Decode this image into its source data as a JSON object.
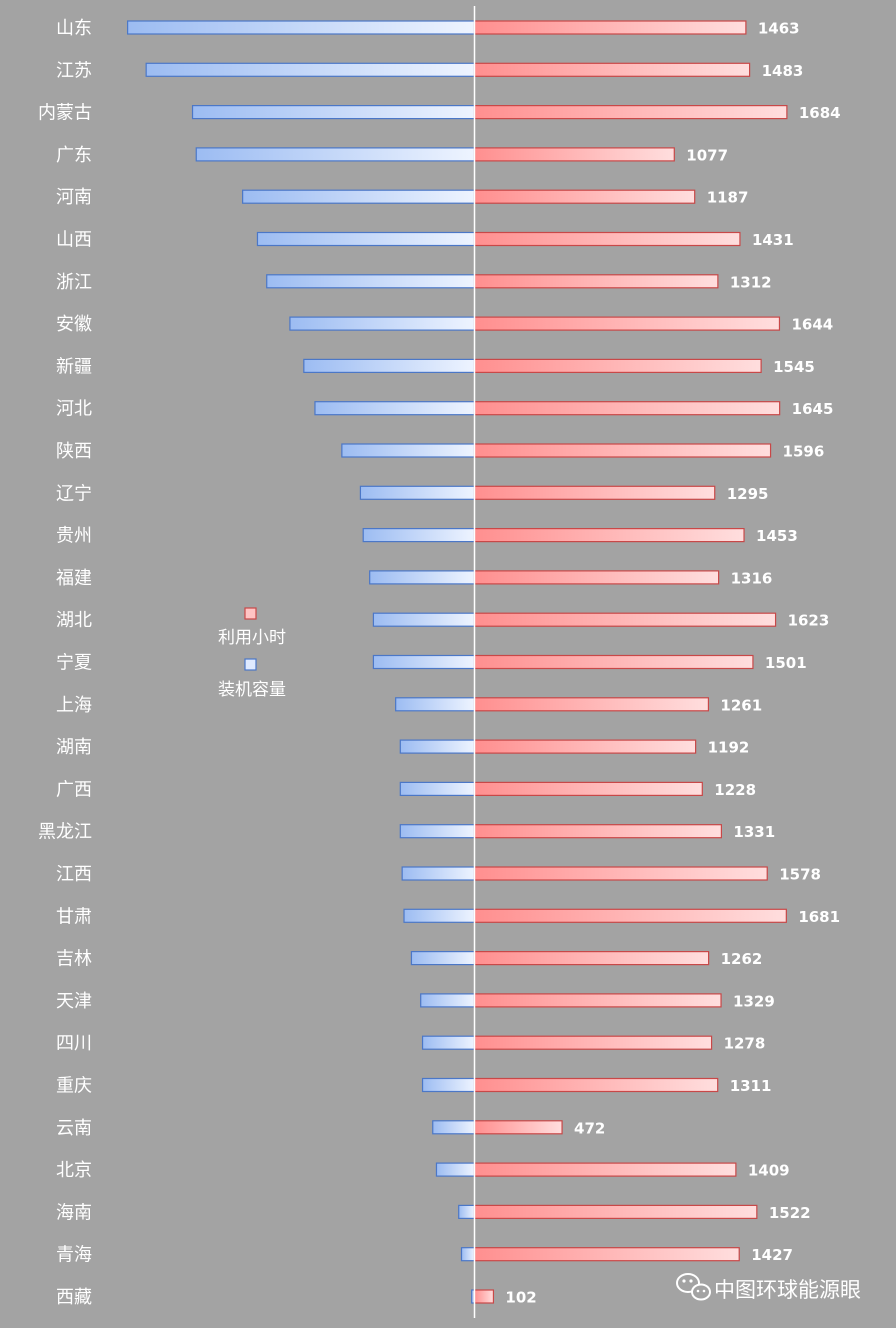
{
  "chart_data": {
    "type": "bar",
    "orientation": "horizontal",
    "layout": "diverging",
    "categories": [
      "山东",
      "江苏",
      "内蒙古",
      "广东",
      "河南",
      "山西",
      "浙江",
      "安徽",
      "新疆",
      "河北",
      "陕西",
      "辽宁",
      "贵州",
      "福建",
      "湖北",
      "宁夏",
      "上海",
      "湖南",
      "广西",
      "黑龙江",
      "江西",
      "甘肃",
      "吉林",
      "天津",
      "四川",
      "重庆",
      "云南",
      "北京",
      "海南",
      "青海",
      "西藏"
    ],
    "series": [
      {
        "name": "利用小时",
        "side": "right",
        "color": "#ff9a9a",
        "values": [
          1463,
          1483,
          1684,
          1077,
          1187,
          1431,
          1312,
          1644,
          1545,
          1645,
          1596,
          1295,
          1453,
          1316,
          1623,
          1501,
          1261,
          1192,
          1228,
          1331,
          1578,
          1681,
          1262,
          1329,
          1278,
          1311,
          472,
          1409,
          1522,
          1427,
          102
        ],
        "labels": [
          "1463",
          "1483",
          "1684",
          "1077",
          "1187",
          "1431",
          "1312",
          "1644",
          "1545",
          "1645",
          "1596",
          "1295",
          "1453",
          "1316",
          "1623",
          "1501",
          "1261",
          "1192",
          "1228",
          "1331",
          "1578",
          "1681",
          "1262",
          "1329",
          "1278",
          "1311",
          "472",
          "1409",
          "1522",
          "1427",
          "102"
        ]
      },
      {
        "name": "装机容量",
        "side": "left",
        "color": "#a9c8ff",
        "values": [
          1870,
          1770,
          1520,
          1500,
          1250,
          1170,
          1120,
          995,
          920,
          860,
          715,
          615,
          600,
          565,
          545,
          545,
          425,
          400,
          400,
          400,
          390,
          380,
          340,
          290,
          280,
          280,
          225,
          205,
          85,
          70,
          15
        ]
      }
    ],
    "legend": {
      "placement": "left-middle",
      "entries": [
        "利用小时",
        "装机容量"
      ]
    },
    "grid": false,
    "axis_line_color": "#ffffff"
  },
  "watermark": {
    "icon": "wechat-icon",
    "text": "中图环球能源眼"
  }
}
